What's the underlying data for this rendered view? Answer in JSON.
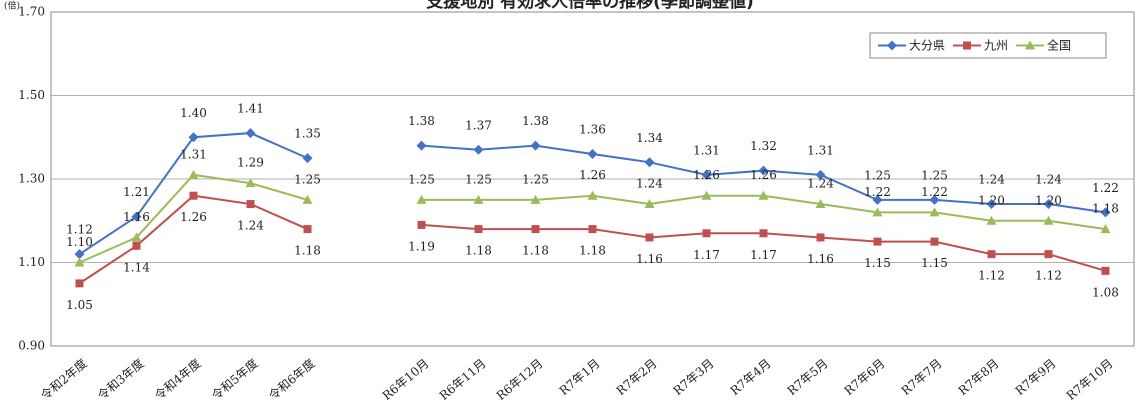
{
  "chart_data": {
    "type": "line",
    "title": "支援地別 有効求人倍率の推移(季節調整値)",
    "y_label": "(倍)",
    "categories": [
      "令和2年度",
      "令和3年度",
      "令和4年度",
      "令和5年度",
      "令和6年度",
      null,
      "R6年10月",
      "R6年11月",
      "R6年12月",
      "R7年1月",
      "R7年2月",
      "R7年3月",
      "R7年4月",
      "R7年5月",
      "R7年6月",
      "R7年7月",
      "R7年8月",
      "R7年9月",
      "R7年10月"
    ],
    "series": [
      {
        "name": "大分県",
        "color": "#4472c4",
        "marker": "diamond",
        "values": [
          1.12,
          1.21,
          1.4,
          1.41,
          1.35,
          null,
          1.38,
          1.37,
          1.38,
          1.36,
          1.34,
          1.31,
          1.32,
          1.31,
          1.25,
          1.25,
          1.24,
          1.24,
          1.22
        ],
        "value_labels": [
          "1.12",
          "1.21",
          "1.40",
          "1.41",
          "1.35",
          null,
          "1.38",
          "1.37",
          "1.38",
          "1.36",
          "1.34",
          "1.31",
          "1.32",
          "1.31",
          "1.25",
          "1.25",
          "1.24",
          "1.24",
          "1.22"
        ]
      },
      {
        "name": "九州",
        "color": "#c0504d",
        "marker": "square",
        "values": [
          1.05,
          1.14,
          1.26,
          1.24,
          1.18,
          null,
          1.19,
          1.18,
          1.18,
          1.18,
          1.16,
          1.17,
          1.17,
          1.16,
          1.15,
          1.15,
          1.12,
          1.12,
          1.08
        ],
        "value_labels": [
          "1.05",
          "1.14",
          "1.26",
          "1.24",
          "1.18",
          null,
          "1.19",
          "1.18",
          "1.18",
          "1.18",
          "1.16",
          "1.17",
          "1.17",
          "1.16",
          "1.15",
          "1.15",
          "1.12",
          "1.12",
          "1.08"
        ]
      },
      {
        "name": "全国",
        "color": "#9bbb59",
        "marker": "triangle",
        "values": [
          1.1,
          1.16,
          1.31,
          1.29,
          1.25,
          null,
          1.25,
          1.25,
          1.25,
          1.26,
          1.24,
          1.26,
          1.26,
          1.24,
          1.22,
          1.22,
          1.2,
          1.2,
          1.18
        ],
        "value_labels": [
          "1.10",
          "1.16",
          "1.31",
          "1.29",
          "1.25",
          null,
          "1.25",
          "1.25",
          "1.25",
          "1.26",
          "1.24",
          "1.26",
          "1.26",
          "1.24",
          "1.22",
          "1.22",
          "1.20",
          "1.20",
          "1.18"
        ]
      }
    ],
    "ylim": [
      0.9,
      1.7
    ],
    "yticks": [
      {
        "value": 0.9,
        "label": "0.90"
      },
      {
        "value": 1.1,
        "label": "1.10"
      },
      {
        "value": 1.3,
        "label": "1.30"
      },
      {
        "value": 1.5,
        "label": "1.50"
      },
      {
        "value": 1.7,
        "label": "1.70"
      }
    ],
    "grid": true,
    "legend": "top-right"
  }
}
